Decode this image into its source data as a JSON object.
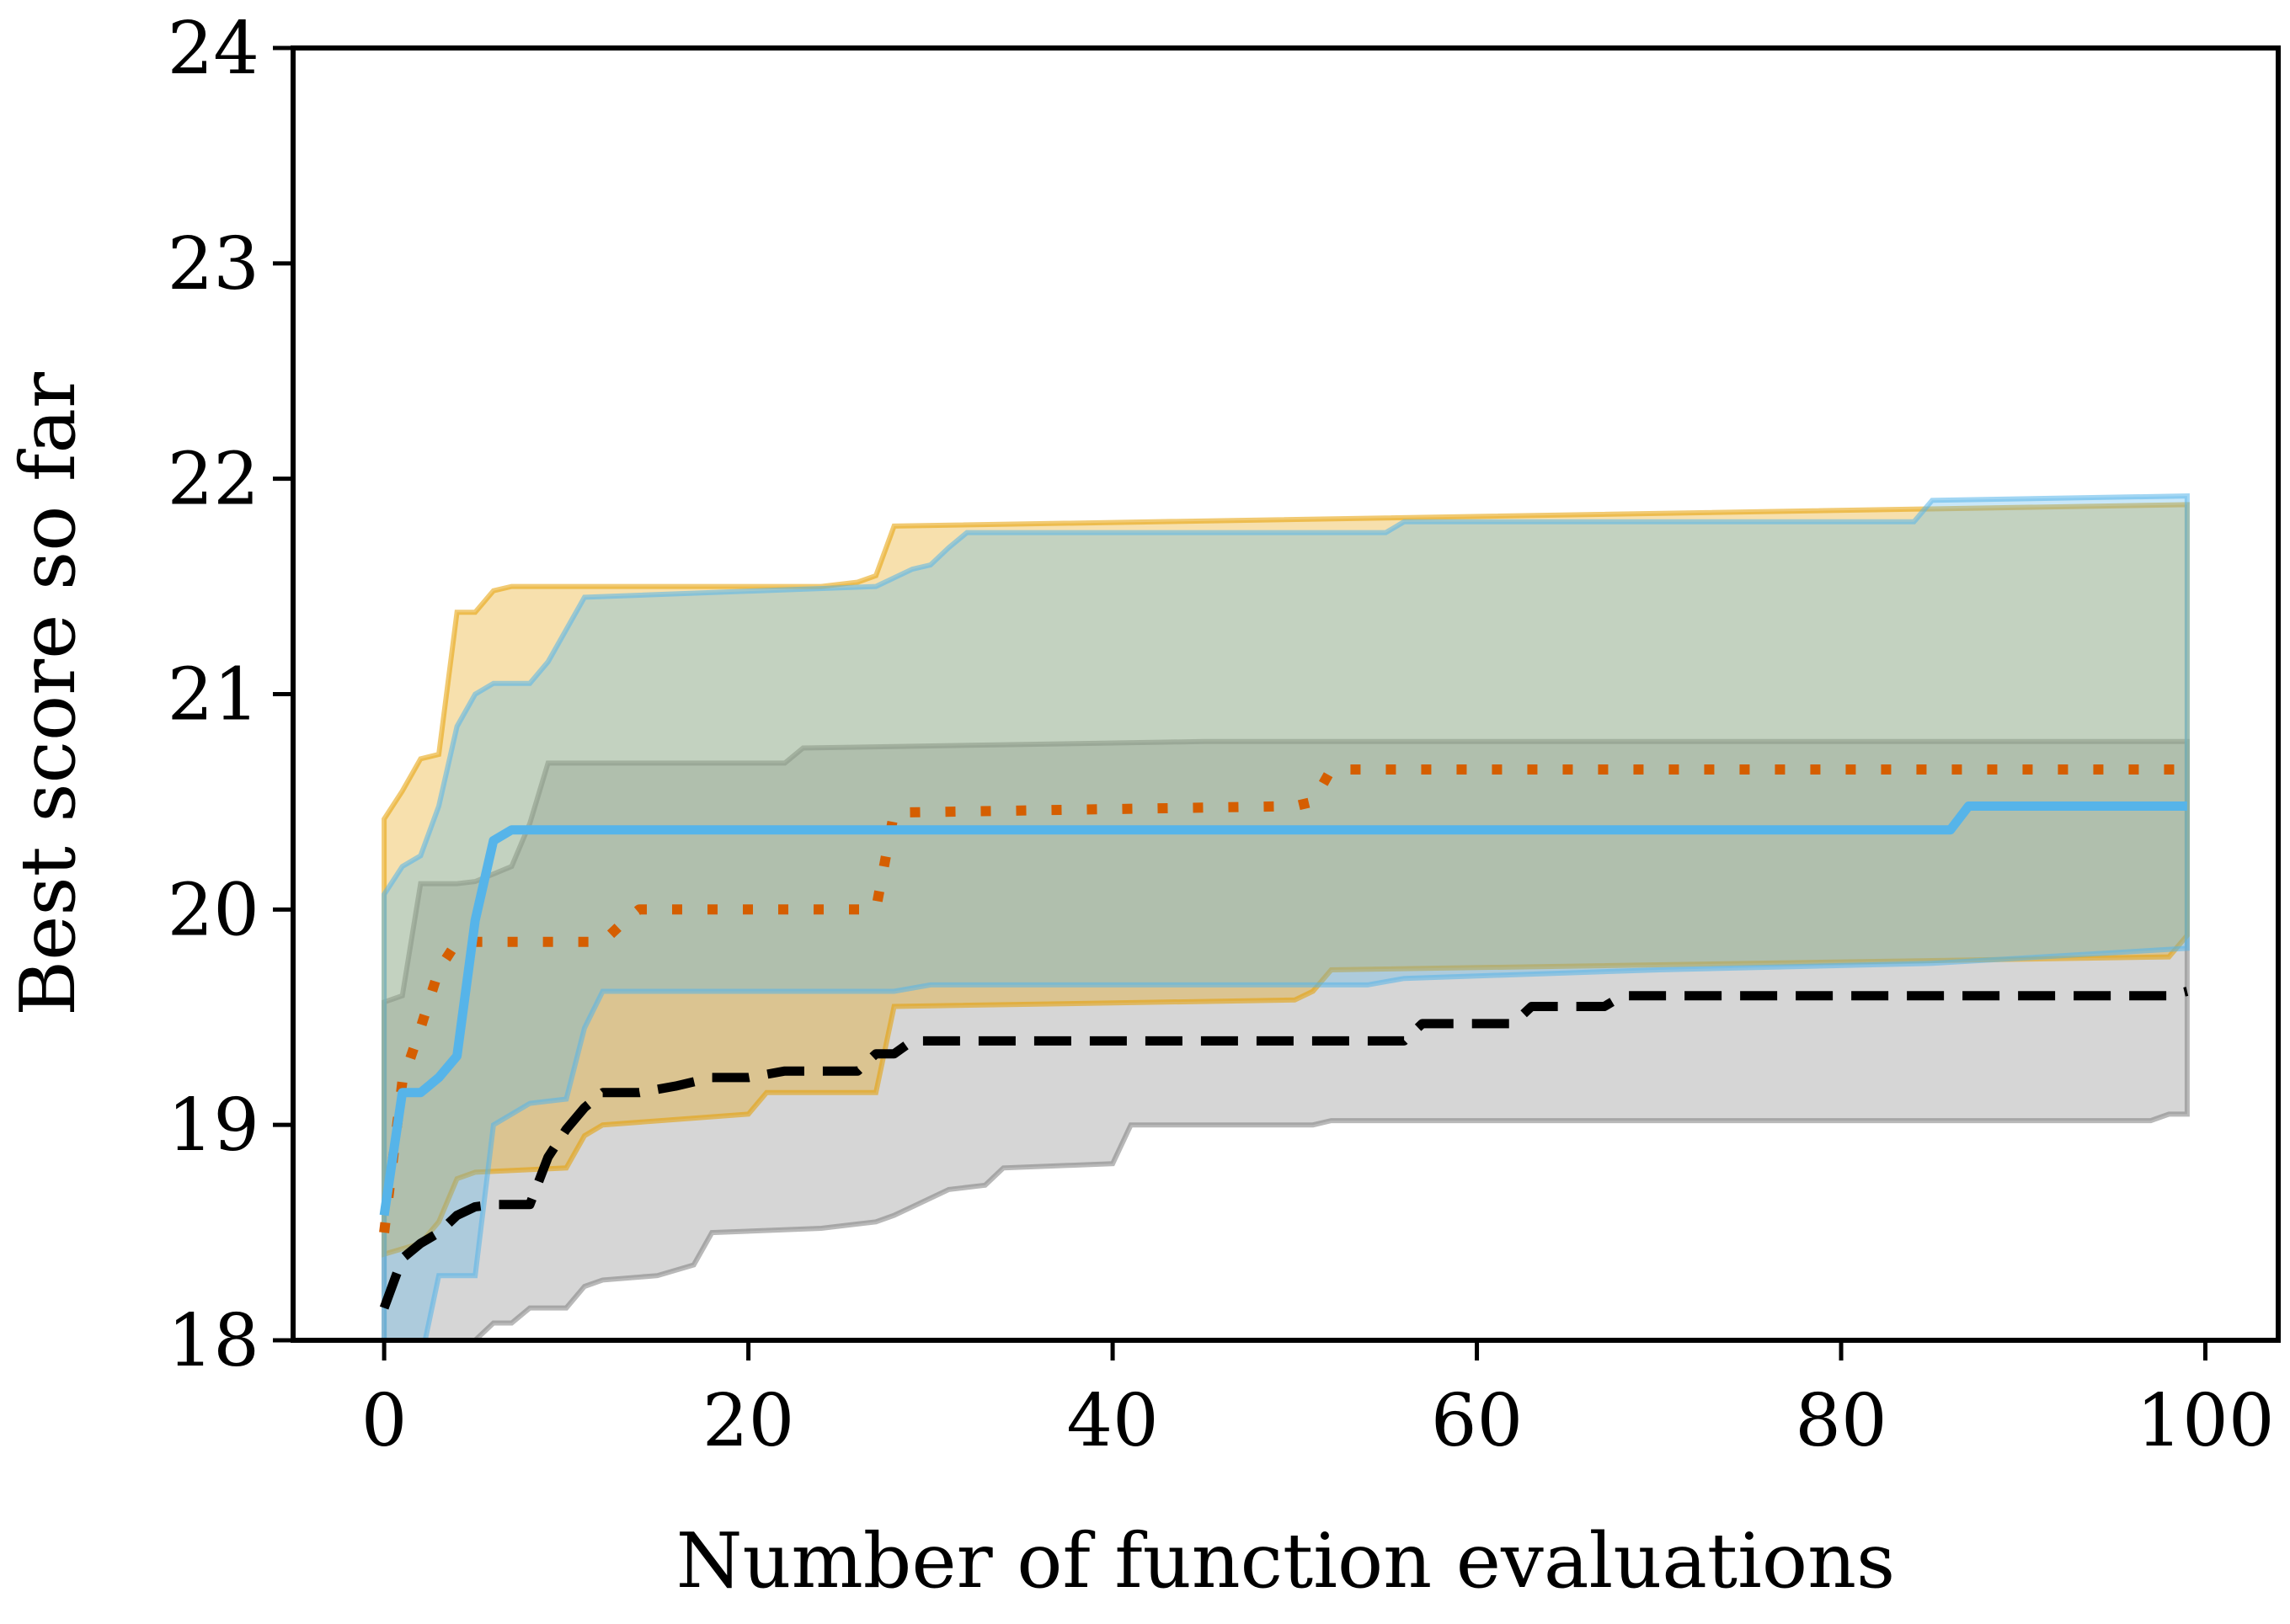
{
  "chart_data": {
    "type": "line",
    "title": "",
    "xlabel": "Number of function evaluations",
    "ylabel": "Best score so far",
    "xlim": [
      -5,
      104
    ],
    "ylim": [
      18,
      24
    ],
    "xticks": [
      0,
      20,
      40,
      60,
      80,
      100
    ],
    "yticks": [
      18,
      19,
      20,
      21,
      22,
      23,
      24
    ],
    "grid": false,
    "legend": "none",
    "series": [
      {
        "color": "#000000",
        "style": "dashed",
        "band_color": "#7f7f7f",
        "mean": [
          [
            0,
            18.15
          ],
          [
            1,
            18.38
          ],
          [
            2,
            18.45
          ],
          [
            3,
            18.5
          ],
          [
            4,
            18.58
          ],
          [
            5,
            18.62
          ],
          [
            6,
            18.63
          ],
          [
            7,
            18.63
          ],
          [
            8,
            18.63
          ],
          [
            9,
            18.85
          ],
          [
            10,
            18.98
          ],
          [
            11,
            19.08
          ],
          [
            12,
            19.15
          ],
          [
            14,
            19.15
          ],
          [
            16,
            19.18
          ],
          [
            18,
            19.22
          ],
          [
            20,
            19.22
          ],
          [
            22,
            19.25
          ],
          [
            26,
            19.25
          ],
          [
            27,
            19.33
          ],
          [
            28,
            19.33
          ],
          [
            29,
            19.39
          ],
          [
            56,
            19.39
          ],
          [
            57,
            19.47
          ],
          [
            62,
            19.47
          ],
          [
            63,
            19.55
          ],
          [
            67,
            19.55
          ],
          [
            68,
            19.6
          ],
          [
            98,
            19.6
          ],
          [
            99,
            19.62
          ]
        ],
        "upper": [
          [
            0,
            19.57
          ],
          [
            1,
            19.6
          ],
          [
            2,
            20.12
          ],
          [
            4,
            20.12
          ],
          [
            5,
            20.13
          ],
          [
            7,
            20.2
          ],
          [
            8,
            20.4
          ],
          [
            9,
            20.68
          ],
          [
            22,
            20.68
          ],
          [
            23,
            20.75
          ],
          [
            45,
            20.78
          ],
          [
            99,
            20.78
          ]
        ],
        "lower": [
          [
            0,
            17.8
          ],
          [
            2,
            17.85
          ],
          [
            4,
            17.9
          ],
          [
            5,
            18.0
          ],
          [
            6,
            18.08
          ],
          [
            7,
            18.08
          ],
          [
            8,
            18.15
          ],
          [
            10,
            18.15
          ],
          [
            11,
            18.25
          ],
          [
            12,
            18.28
          ],
          [
            15,
            18.3
          ],
          [
            17,
            18.35
          ],
          [
            18,
            18.5
          ],
          [
            24,
            18.52
          ],
          [
            27,
            18.55
          ],
          [
            28,
            18.58
          ],
          [
            29,
            18.62
          ],
          [
            31,
            18.7
          ],
          [
            33,
            18.72
          ],
          [
            34,
            18.8
          ],
          [
            40,
            18.82
          ],
          [
            41,
            19.0
          ],
          [
            51,
            19.0
          ],
          [
            52,
            19.02
          ],
          [
            97,
            19.02
          ],
          [
            98,
            19.05
          ],
          [
            99,
            19.05
          ]
        ]
      },
      {
        "color": "#d55e00",
        "style": "dotted",
        "band_color": "#e69f00",
        "mean": [
          [
            0,
            18.5
          ],
          [
            1,
            19.2
          ],
          [
            2,
            19.45
          ],
          [
            3,
            19.72
          ],
          [
            4,
            19.85
          ],
          [
            12,
            19.85
          ],
          [
            13,
            19.93
          ],
          [
            14,
            20.0
          ],
          [
            27,
            20.0
          ],
          [
            28,
            20.45
          ],
          [
            50,
            20.48
          ],
          [
            51,
            20.5
          ],
          [
            52,
            20.65
          ],
          [
            99,
            20.65
          ]
        ],
        "upper": [
          [
            0,
            20.42
          ],
          [
            1,
            20.55
          ],
          [
            2,
            20.7
          ],
          [
            3,
            20.72
          ],
          [
            4,
            21.38
          ],
          [
            5,
            21.38
          ],
          [
            6,
            21.48
          ],
          [
            7,
            21.5
          ],
          [
            24,
            21.5
          ],
          [
            26,
            21.52
          ],
          [
            27,
            21.55
          ],
          [
            28,
            21.78
          ],
          [
            99,
            21.88
          ]
        ],
        "lower": [
          [
            0,
            18.4
          ],
          [
            2,
            18.45
          ],
          [
            3,
            18.55
          ],
          [
            4,
            18.75
          ],
          [
            5,
            18.78
          ],
          [
            10,
            18.8
          ],
          [
            11,
            18.95
          ],
          [
            12,
            19.0
          ],
          [
            20,
            19.05
          ],
          [
            21,
            19.15
          ],
          [
            27,
            19.15
          ],
          [
            28,
            19.55
          ],
          [
            50,
            19.58
          ],
          [
            51,
            19.62
          ],
          [
            52,
            19.72
          ],
          [
            98,
            19.78
          ],
          [
            99,
            19.88
          ]
        ]
      },
      {
        "color": "#56b4e9",
        "style": "solid",
        "band_color": "#56b4e9",
        "mean": [
          [
            0,
            18.58
          ],
          [
            1,
            19.15
          ],
          [
            2,
            19.15
          ],
          [
            3,
            19.22
          ],
          [
            4,
            19.32
          ],
          [
            5,
            19.95
          ],
          [
            6,
            20.32
          ],
          [
            7,
            20.37
          ],
          [
            86,
            20.37
          ],
          [
            87,
            20.48
          ],
          [
            99,
            20.48
          ]
        ],
        "upper": [
          [
            0,
            20.07
          ],
          [
            1,
            20.2
          ],
          [
            2,
            20.25
          ],
          [
            3,
            20.48
          ],
          [
            4,
            20.85
          ],
          [
            5,
            21.0
          ],
          [
            6,
            21.05
          ],
          [
            8,
            21.05
          ],
          [
            9,
            21.15
          ],
          [
            10,
            21.3
          ],
          [
            11,
            21.45
          ],
          [
            27,
            21.5
          ],
          [
            29,
            21.58
          ],
          [
            30,
            21.6
          ],
          [
            31,
            21.68
          ],
          [
            32,
            21.75
          ],
          [
            55,
            21.75
          ],
          [
            56,
            21.8
          ],
          [
            84,
            21.8
          ],
          [
            85,
            21.9
          ],
          [
            99,
            21.92
          ]
        ],
        "lower": [
          [
            0,
            17.8
          ],
          [
            2,
            17.9
          ],
          [
            3,
            18.3
          ],
          [
            5,
            18.3
          ],
          [
            6,
            19.0
          ],
          [
            8,
            19.1
          ],
          [
            10,
            19.12
          ],
          [
            11,
            19.45
          ],
          [
            12,
            19.62
          ],
          [
            28,
            19.62
          ],
          [
            30,
            19.65
          ],
          [
            54,
            19.65
          ],
          [
            56,
            19.68
          ],
          [
            70,
            19.72
          ],
          [
            85,
            19.75
          ],
          [
            99,
            19.82
          ]
        ]
      }
    ]
  }
}
